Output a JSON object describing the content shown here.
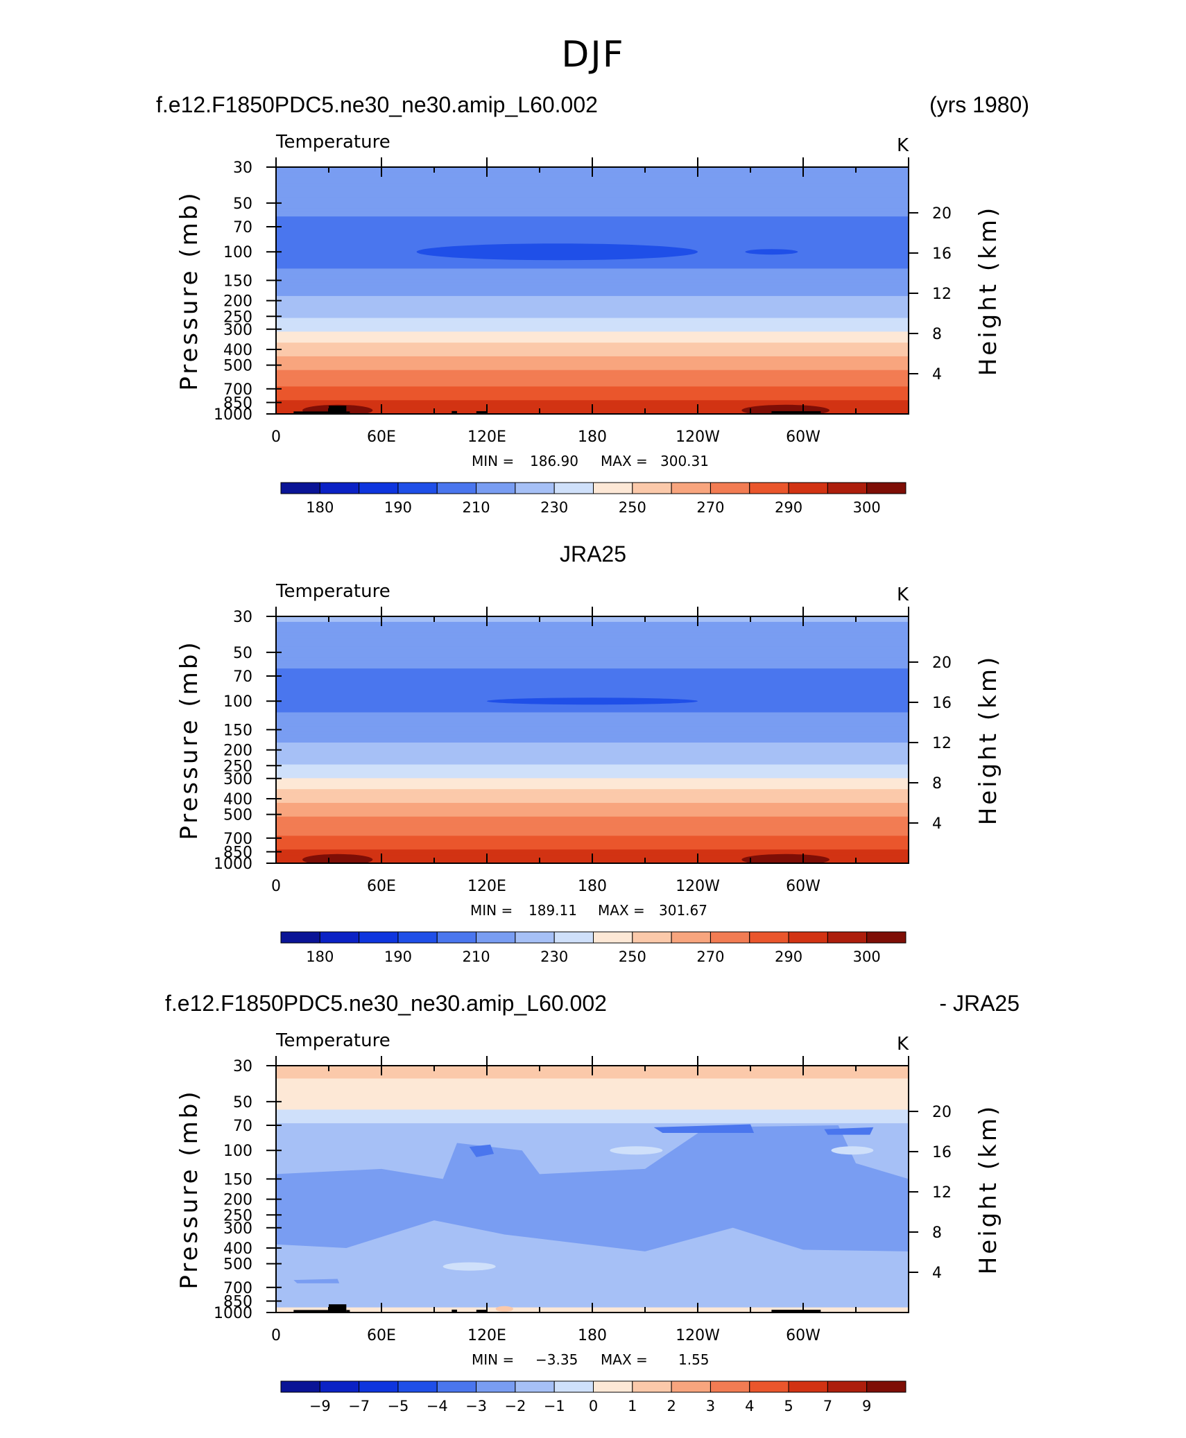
{
  "figure": {
    "main_title": "DJF",
    "panels": [
      {
        "left_title": "f.e12.F1850PDC5.ne30_ne30.amip_L60.002",
        "right_title": "(yrs 1980)",
        "center_title": "",
        "subtitle": "Temperature",
        "units": "K",
        "min_label": "MIN =",
        "min_value": "186.90",
        "max_label": "MAX =",
        "max_value": "300.31"
      },
      {
        "left_title": "",
        "right_title": "",
        "center_title": "JRA25",
        "subtitle": "Temperature",
        "units": "K",
        "min_label": "MIN =",
        "min_value": "189.11",
        "max_label": "MAX =",
        "max_value": "301.67"
      },
      {
        "left_title": "f.e12.F1850PDC5.ne30_ne30.amip_L60.002",
        "right_title": "- JRA25",
        "center_title": "",
        "subtitle": "Temperature",
        "units": "K",
        "min_label": "MIN =",
        "min_value": "−3.35",
        "max_label": "MAX =",
        "max_value": "1.55"
      }
    ]
  },
  "chart_data": [
    {
      "type": "heatmap",
      "title": "f.e12.F1850PDC5.ne30_ne30.amip_L60.002",
      "subtitle": "Temperature",
      "units": "K",
      "xlabel": "",
      "ylabel": "Pressure (mb)",
      "y2label": "Height (km)",
      "x_ticks": [
        "0",
        "60E",
        "120E",
        "180",
        "120W",
        "60W"
      ],
      "y_ticks": [
        "30",
        "50",
        "70",
        "100",
        "150",
        "200",
        "250",
        "300",
        "400",
        "500",
        "700",
        "850",
        "1000"
      ],
      "y2_ticks": [
        "20",
        "16",
        "12",
        "8",
        "4"
      ],
      "levels_hPa": [
        30,
        50,
        70,
        100,
        150,
        200,
        250,
        300,
        400,
        500,
        700,
        850,
        1000
      ],
      "zonal_mean_K": [
        210,
        204,
        197,
        196,
        203,
        212,
        218,
        228,
        246,
        257,
        271,
        281,
        290
      ],
      "min": 186.9,
      "max": 300.31,
      "colorbar_labels": [
        "180",
        "190",
        "210",
        "230",
        "250",
        "270",
        "290",
        "300"
      ],
      "colorbar_levels": [
        175,
        180,
        185,
        190,
        200,
        210,
        220,
        230,
        240,
        250,
        260,
        270,
        280,
        290,
        295,
        300
      ],
      "colorbar_colors": [
        "#0a1496",
        "#0b22c5",
        "#0e35de",
        "#1f4fe8",
        "#4a76ee",
        "#799df2",
        "#a6c0f6",
        "#cfe0fa",
        "#fde8d6",
        "#fbc9aa",
        "#f8a57e",
        "#f27c53",
        "#ea562c",
        "#d23313",
        "#ad1e0c",
        "#7e0e06"
      ]
    },
    {
      "type": "heatmap",
      "title": "JRA25",
      "subtitle": "Temperature",
      "units": "K",
      "xlabel": "",
      "ylabel": "Pressure (mb)",
      "y2label": "Height (km)",
      "x_ticks": [
        "0",
        "60E",
        "120E",
        "180",
        "120W",
        "60W"
      ],
      "y_ticks": [
        "30",
        "50",
        "70",
        "100",
        "150",
        "200",
        "250",
        "300",
        "400",
        "500",
        "700",
        "850",
        "1000"
      ],
      "y2_ticks": [
        "20",
        "16",
        "12",
        "8",
        "4"
      ],
      "levels_hPa": [
        30,
        50,
        70,
        100,
        150,
        200,
        250,
        300,
        400,
        500,
        700,
        850,
        1000
      ],
      "zonal_mean_K": [
        211,
        205,
        198,
        197,
        204,
        213,
        220,
        230,
        247,
        258,
        272,
        282,
        291
      ],
      "min": 189.11,
      "max": 301.67,
      "colorbar_labels": [
        "180",
        "190",
        "210",
        "230",
        "250",
        "270",
        "290",
        "300"
      ],
      "colorbar_levels": [
        175,
        180,
        185,
        190,
        200,
        210,
        220,
        230,
        240,
        250,
        260,
        270,
        280,
        290,
        295,
        300
      ],
      "colorbar_colors": [
        "#0a1496",
        "#0b22c5",
        "#0e35de",
        "#1f4fe8",
        "#4a76ee",
        "#799df2",
        "#a6c0f6",
        "#cfe0fa",
        "#fde8d6",
        "#fbc9aa",
        "#f8a57e",
        "#f27c53",
        "#ea562c",
        "#d23313",
        "#ad1e0c",
        "#7e0e06"
      ]
    },
    {
      "type": "heatmap",
      "title": "f.e12.F1850PDC5.ne30_ne30.amip_L60.002 - JRA25",
      "subtitle": "Temperature",
      "units": "K",
      "xlabel": "",
      "ylabel": "Pressure (mb)",
      "y2label": "Height (km)",
      "x_ticks": [
        "0",
        "60E",
        "120E",
        "180",
        "120W",
        "60W"
      ],
      "y_ticks": [
        "30",
        "50",
        "70",
        "100",
        "150",
        "200",
        "250",
        "300",
        "400",
        "500",
        "700",
        "850",
        "1000"
      ],
      "y2_ticks": [
        "20",
        "16",
        "12",
        "8",
        "4"
      ],
      "min": -3.35,
      "max": 1.55,
      "colorbar_labels": [
        "−9",
        "−7",
        "−5",
        "−4",
        "−3",
        "−2",
        "−1",
        "0",
        "1",
        "2",
        "3",
        "4",
        "5",
        "7",
        "9"
      ],
      "colorbar_levels": [
        -9,
        -7,
        -5,
        -4,
        -3,
        -2,
        -1,
        0,
        1,
        2,
        3,
        4,
        5,
        7,
        9
      ],
      "colorbar_colors": [
        "#0a1496",
        "#0b22c5",
        "#0e35de",
        "#1f4fe8",
        "#4a76ee",
        "#799df2",
        "#a6c0f6",
        "#cfe0fa",
        "#fde8d6",
        "#fbc9aa",
        "#f8a57e",
        "#f27c53",
        "#ea562c",
        "#d23313",
        "#ad1e0c",
        "#7e0e06"
      ]
    }
  ]
}
